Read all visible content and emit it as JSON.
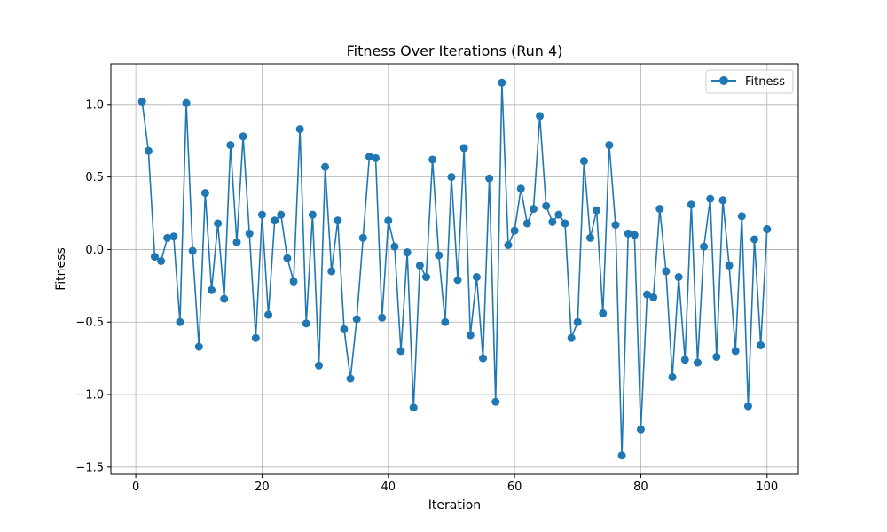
{
  "chart_data": {
    "type": "line",
    "title": "Fitness Over Iterations (Run 4)",
    "xlabel": "Iteration",
    "ylabel": "Fitness",
    "xlim": [
      -3.95,
      104.95
    ],
    "ylim": [
      -1.55,
      1.28
    ],
    "xticks": [
      0,
      20,
      40,
      60,
      80,
      100
    ],
    "yticks": [
      -1.5,
      -1.0,
      -0.5,
      0.0,
      0.5,
      1.0
    ],
    "ytick_labels": [
      "−1.5",
      "−1.0",
      "−0.5",
      "0.0",
      "0.5",
      "1.0"
    ],
    "grid": true,
    "legend_position": "top-right",
    "series": [
      {
        "name": "Fitness",
        "color": "#1f77b4",
        "marker": "circle",
        "x": [
          1,
          2,
          3,
          4,
          5,
          6,
          7,
          8,
          9,
          10,
          11,
          12,
          13,
          14,
          15,
          16,
          17,
          18,
          19,
          20,
          21,
          22,
          23,
          24,
          25,
          26,
          27,
          28,
          29,
          30,
          31,
          32,
          33,
          34,
          35,
          36,
          37,
          38,
          39,
          40,
          41,
          42,
          43,
          44,
          45,
          46,
          47,
          48,
          49,
          50,
          51,
          52,
          53,
          54,
          55,
          56,
          57,
          58,
          59,
          60,
          61,
          62,
          63,
          64,
          65,
          66,
          67,
          68,
          69,
          70,
          71,
          72,
          73,
          74,
          75,
          76,
          77,
          78,
          79,
          80,
          81,
          82,
          83,
          84,
          85,
          86,
          87,
          88,
          89,
          90,
          91,
          92,
          93,
          94,
          95,
          96,
          97,
          98,
          99,
          100
        ],
        "y": [
          1.02,
          0.68,
          -0.05,
          -0.08,
          0.08,
          0.09,
          -0.5,
          1.01,
          -0.01,
          -0.67,
          0.39,
          -0.28,
          0.18,
          -0.34,
          0.72,
          0.05,
          0.78,
          0.11,
          -0.61,
          0.24,
          -0.45,
          0.2,
          0.24,
          -0.06,
          -0.22,
          0.83,
          -0.51,
          0.24,
          -0.8,
          0.57,
          -0.15,
          0.2,
          -0.55,
          -0.89,
          -0.48,
          0.08,
          0.64,
          0.63,
          -0.47,
          0.2,
          0.02,
          -0.7,
          -0.02,
          -1.09,
          -0.11,
          -0.19,
          0.62,
          -0.04,
          -0.5,
          0.5,
          -0.21,
          0.7,
          -0.59,
          -0.19,
          -0.75,
          0.49,
          -1.05,
          1.15,
          0.03,
          0.13,
          0.42,
          0.18,
          0.28,
          0.92,
          0.3,
          0.19,
          0.24,
          0.18,
          -0.61,
          -0.5,
          0.61,
          0.08,
          0.27,
          -0.44,
          0.72,
          0.17,
          -1.42,
          0.11,
          0.1,
          -1.24,
          -0.31,
          -0.33,
          0.28,
          -0.15,
          -0.88,
          -0.19,
          -0.76,
          0.31,
          -0.78,
          0.02,
          0.35,
          -0.74,
          0.34,
          -0.11,
          -0.7,
          0.23,
          -1.08,
          0.07,
          -0.66,
          0.14
        ]
      }
    ]
  }
}
